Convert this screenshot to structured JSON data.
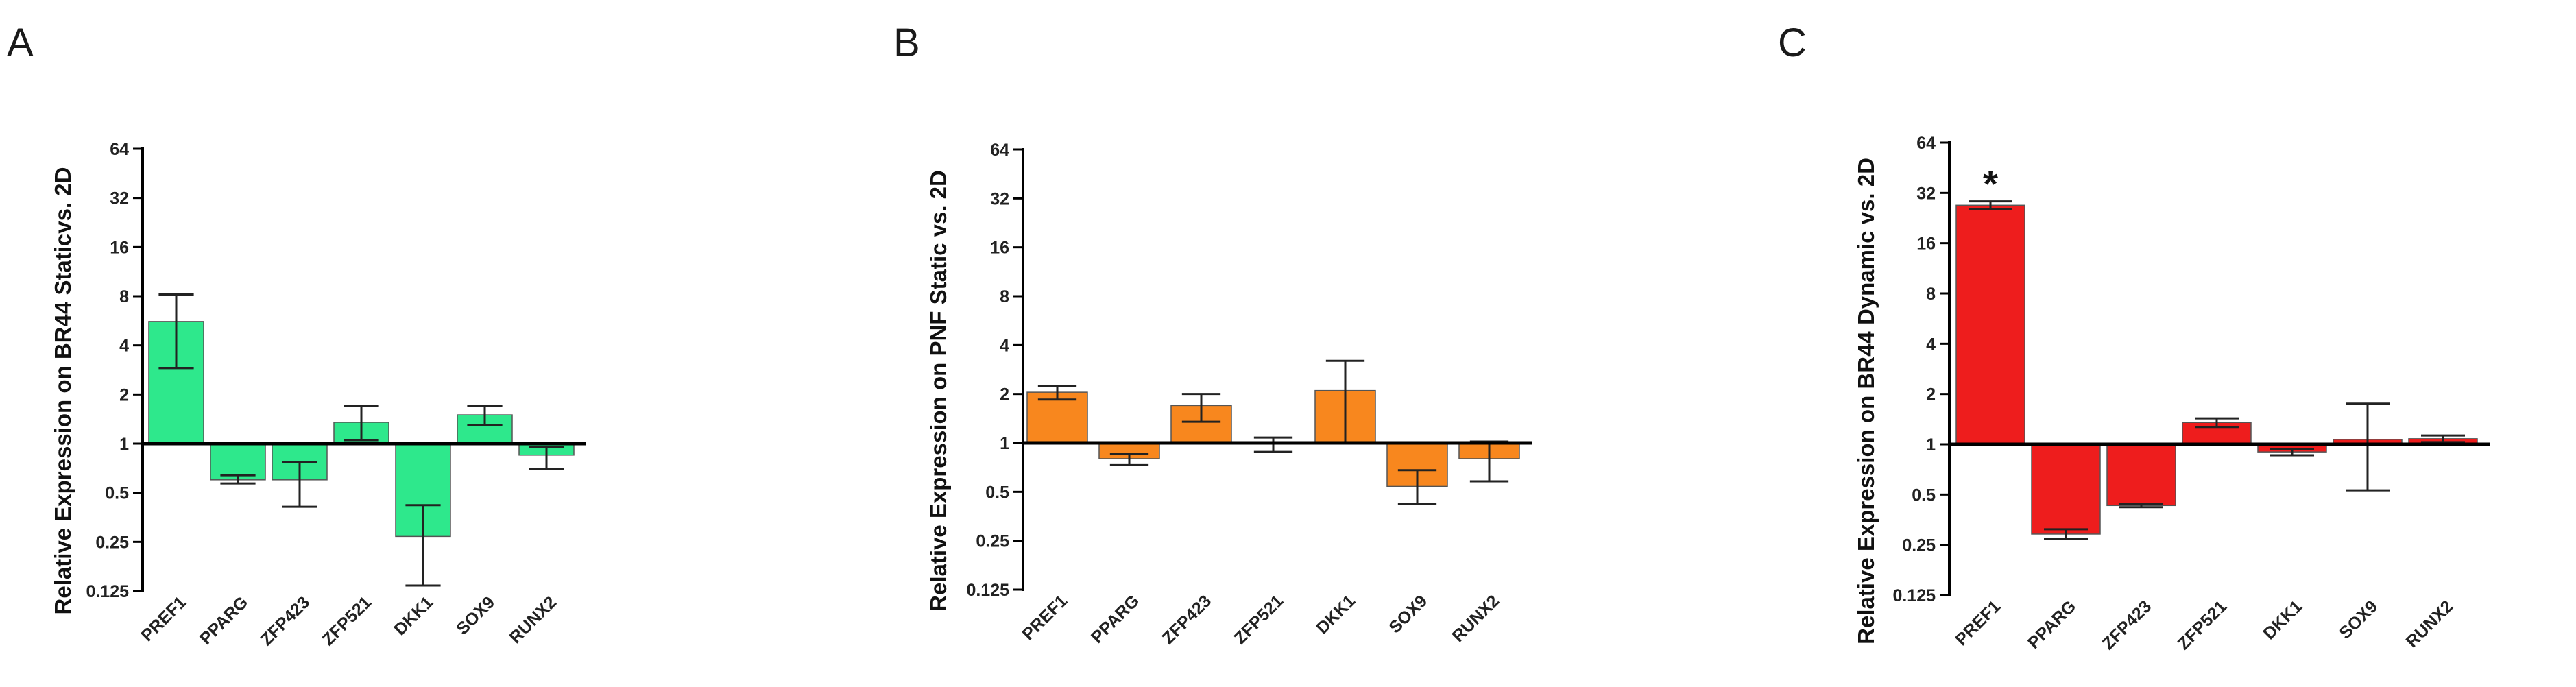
{
  "figure": {
    "panels": [
      "A",
      "B",
      "C"
    ]
  },
  "chart_data": [
    {
      "type": "bar",
      "panel": "A",
      "title": "",
      "xlabel": "",
      "ylabel": "Relative Expression on BR44 Staticvs. 2D",
      "yscale": "log2",
      "ylim": [
        0.125,
        64
      ],
      "yticks": [
        "0.125",
        "0.25",
        "0.5",
        "1",
        "2",
        "4",
        "8",
        "16",
        "32",
        "64"
      ],
      "baseline": 1,
      "color": "#2ee88c",
      "categories": [
        "PREF1",
        "PPARG",
        "ZFP423",
        "ZFP521",
        "DKK1",
        "SOX9",
        "RUNX2"
      ],
      "values": [
        5.6,
        0.6,
        0.6,
        1.35,
        0.27,
        1.5,
        0.85
      ],
      "error_high": [
        8.2,
        0.64,
        0.77,
        1.7,
        0.42,
        1.7,
        0.95
      ],
      "error_low": [
        2.9,
        0.57,
        0.41,
        1.05,
        0.135,
        1.3,
        0.7
      ],
      "annotations": []
    },
    {
      "type": "bar",
      "panel": "B",
      "title": "",
      "xlabel": "",
      "ylabel": "Relative Expression on PNF Static vs. 2D",
      "yscale": "log2",
      "ylim": [
        0.125,
        64
      ],
      "yticks": [
        "0.125",
        "0.25",
        "0.5",
        "1",
        "2",
        "4",
        "8",
        "16",
        "32",
        "64"
      ],
      "baseline": 1,
      "color": "#f8871e",
      "categories": [
        "PREF1",
        "PPARG",
        "ZFP423",
        "ZFP521",
        "DKK1",
        "SOX9",
        "RUNX2"
      ],
      "values": [
        2.05,
        0.8,
        1.7,
        1.0,
        2.1,
        0.54,
        0.8
      ],
      "error_high": [
        2.25,
        0.86,
        2.0,
        1.08,
        3.2,
        0.68,
        1.02
      ],
      "error_low": [
        1.85,
        0.73,
        1.35,
        0.88,
        1.0,
        0.42,
        0.58
      ],
      "annotations": []
    },
    {
      "type": "bar",
      "panel": "C",
      "title": "",
      "xlabel": "",
      "ylabel": "Relative Expression on BR44 Dynamic vs. 2D",
      "yscale": "log2",
      "ylim": [
        0.125,
        64
      ],
      "yticks": [
        "0.125",
        "0.25",
        "0.5",
        "1",
        "2",
        "4",
        "8",
        "16",
        "32",
        "64"
      ],
      "baseline": 1,
      "color": "#ee1d1d",
      "categories": [
        "PREF1",
        "PPARG",
        "ZFP423",
        "ZFP521",
        "DKK1",
        "SOX9",
        "RUNX2"
      ],
      "values": [
        27,
        0.29,
        0.43,
        1.35,
        0.9,
        1.07,
        1.08
      ],
      "error_high": [
        28.5,
        0.31,
        0.44,
        1.43,
        0.94,
        1.75,
        1.13
      ],
      "error_low": [
        25.5,
        0.27,
        0.42,
        1.27,
        0.86,
        0.53,
        1.03
      ],
      "annotations": [
        {
          "category": "PREF1",
          "text": "*"
        }
      ]
    }
  ]
}
